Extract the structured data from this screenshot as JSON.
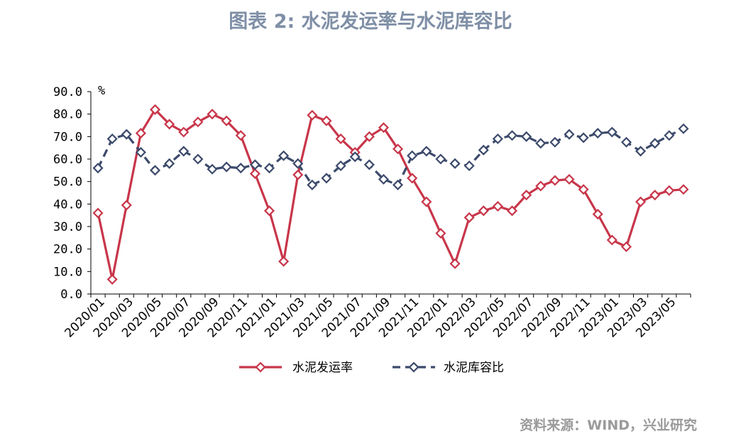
{
  "title": "图表 2:  水泥发运率与水泥库容比",
  "source": "资料来源：WIND，兴业研究",
  "chart_data": {
    "type": "line",
    "yunit": "%",
    "ylim": [
      0,
      90
    ],
    "yticks": [
      "0.0",
      "10.0",
      "20.0",
      "30.0",
      "40.0",
      "50.0",
      "60.0",
      "70.0",
      "80.0",
      "90.0"
    ],
    "xtick_labels": [
      "2020/01",
      "2020/03",
      "2020/05",
      "2020/07",
      "2020/09",
      "2020/11",
      "2021/01",
      "2021/03",
      "2021/05",
      "2021/07",
      "2021/09",
      "2021/11",
      "2022/01",
      "2022/03",
      "2022/05",
      "2022/07",
      "2022/09",
      "2022/11",
      "2023/01",
      "2023/03",
      "2023/05"
    ],
    "legend_position": "bottom",
    "series": [
      {
        "name": "水泥发运率",
        "color": "#c8364a",
        "style": "solid",
        "values": [
          36,
          6.5,
          39.5,
          71.5,
          82,
          75.5,
          72,
          76.5,
          80,
          77,
          70.5,
          53.5,
          37,
          14.5,
          53,
          79.5,
          77,
          69,
          63,
          70,
          74,
          64.5,
          51.5,
          41,
          27,
          13.5,
          34,
          37,
          39,
          37,
          44,
          48,
          50.5,
          51,
          46.5,
          35.5,
          24,
          21,
          41,
          44,
          46,
          46.5
        ]
      },
      {
        "name": "水泥库容比",
        "color": "#3c4a6b",
        "style": "dashed",
        "values": [
          56,
          69,
          71,
          63,
          55,
          58,
          63.5,
          60,
          55.5,
          56.5,
          56,
          57.5,
          56,
          61.5,
          58,
          48.5,
          51.5,
          57,
          61,
          57.5,
          51,
          48.5,
          61.5,
          63.5,
          60,
          58,
          57,
          64,
          69,
          70.5,
          70,
          67,
          67.5,
          71,
          69.5,
          71.5,
          72,
          67.5,
          63.5,
          67,
          70.5,
          73.5
        ]
      }
    ]
  }
}
